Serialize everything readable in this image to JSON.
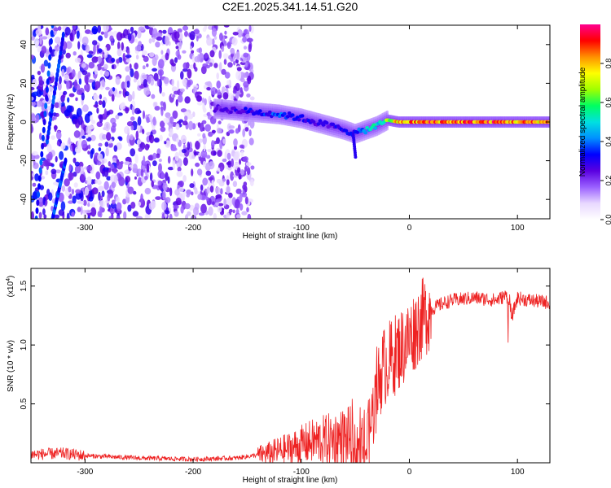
{
  "title": "C2E1.2025.341.14.51.G20",
  "chart_data": [
    {
      "type": "heatmap",
      "xlabel": "Height of straight line (km)",
      "ylabel": "Frequency (Hz)",
      "xlim": [
        -350,
        130
      ],
      "ylim": [
        -50,
        50
      ],
      "xticks": [
        -300,
        -200,
        -100,
        0,
        100
      ],
      "yticks": [
        -40,
        -20,
        0,
        20,
        40
      ],
      "colorbar": {
        "label": "Normalized spectral amplitude",
        "range": [
          0,
          1
        ],
        "ticks": [
          0.0,
          0.2,
          0.4,
          0.6,
          0.8
        ],
        "colormap": [
          "#ffffff",
          "#e8d8ff",
          "#9a60ff",
          "#5a00e0",
          "#0000ff",
          "#0090ff",
          "#00e0e0",
          "#00ff60",
          "#a0ff00",
          "#ffff00",
          "#ff9000",
          "#ff0000",
          "#ff0090"
        ]
      },
      "ridge": {
        "x": [
          -180,
          -160,
          -140,
          -120,
          -100,
          -80,
          -60,
          -50,
          -40,
          -30,
          -20,
          -10,
          0,
          20,
          50,
          80,
          100,
          130
        ],
        "freq": [
          7,
          6,
          5,
          4,
          2,
          -1,
          -4,
          -6,
          -4,
          -2,
          1,
          0,
          0,
          0,
          0,
          0,
          0,
          0
        ],
        "amplitude": [
          0.25,
          0.3,
          0.35,
          0.4,
          0.35,
          0.3,
          0.35,
          0.35,
          0.5,
          0.55,
          0.7,
          0.85,
          0.9,
          0.95,
          0.95,
          0.95,
          0.9,
          0.9
        ]
      },
      "noise_region_x": [
        -350,
        -145
      ]
    },
    {
      "type": "line",
      "xlabel": "Height of straight line (km)",
      "ylabel": "SNR (10 * v/v)",
      "yscale_label": "(x10",
      "yscale_exp": "4",
      "ylabel_suffix": ")",
      "xlim": [
        -350,
        130
      ],
      "ylim": [
        0,
        1.65
      ],
      "xticks": [
        -300,
        -200,
        -100,
        0,
        100
      ],
      "yticks": [
        0.5,
        1.0,
        1.5
      ],
      "line_color": "#ee2222",
      "series": [
        {
          "name": "SNR",
          "x": [
            -350,
            -320,
            -300,
            -250,
            -200,
            -160,
            -130,
            -110,
            -90,
            -70,
            -55,
            -50,
            -40,
            -30,
            -25,
            -20,
            -10,
            0,
            10,
            20,
            30,
            40,
            60,
            80,
            90,
            95,
            100,
            110,
            130
          ],
          "y": [
            0.07,
            0.08,
            0.06,
            0.04,
            0.03,
            0.04,
            0.08,
            0.12,
            0.18,
            0.2,
            0.22,
            0.06,
            0.12,
            0.6,
            0.8,
            0.85,
            0.95,
            1.05,
            1.2,
            1.3,
            1.35,
            1.38,
            1.4,
            1.38,
            1.42,
            1.25,
            1.4,
            1.38,
            1.36
          ]
        }
      ]
    }
  ]
}
